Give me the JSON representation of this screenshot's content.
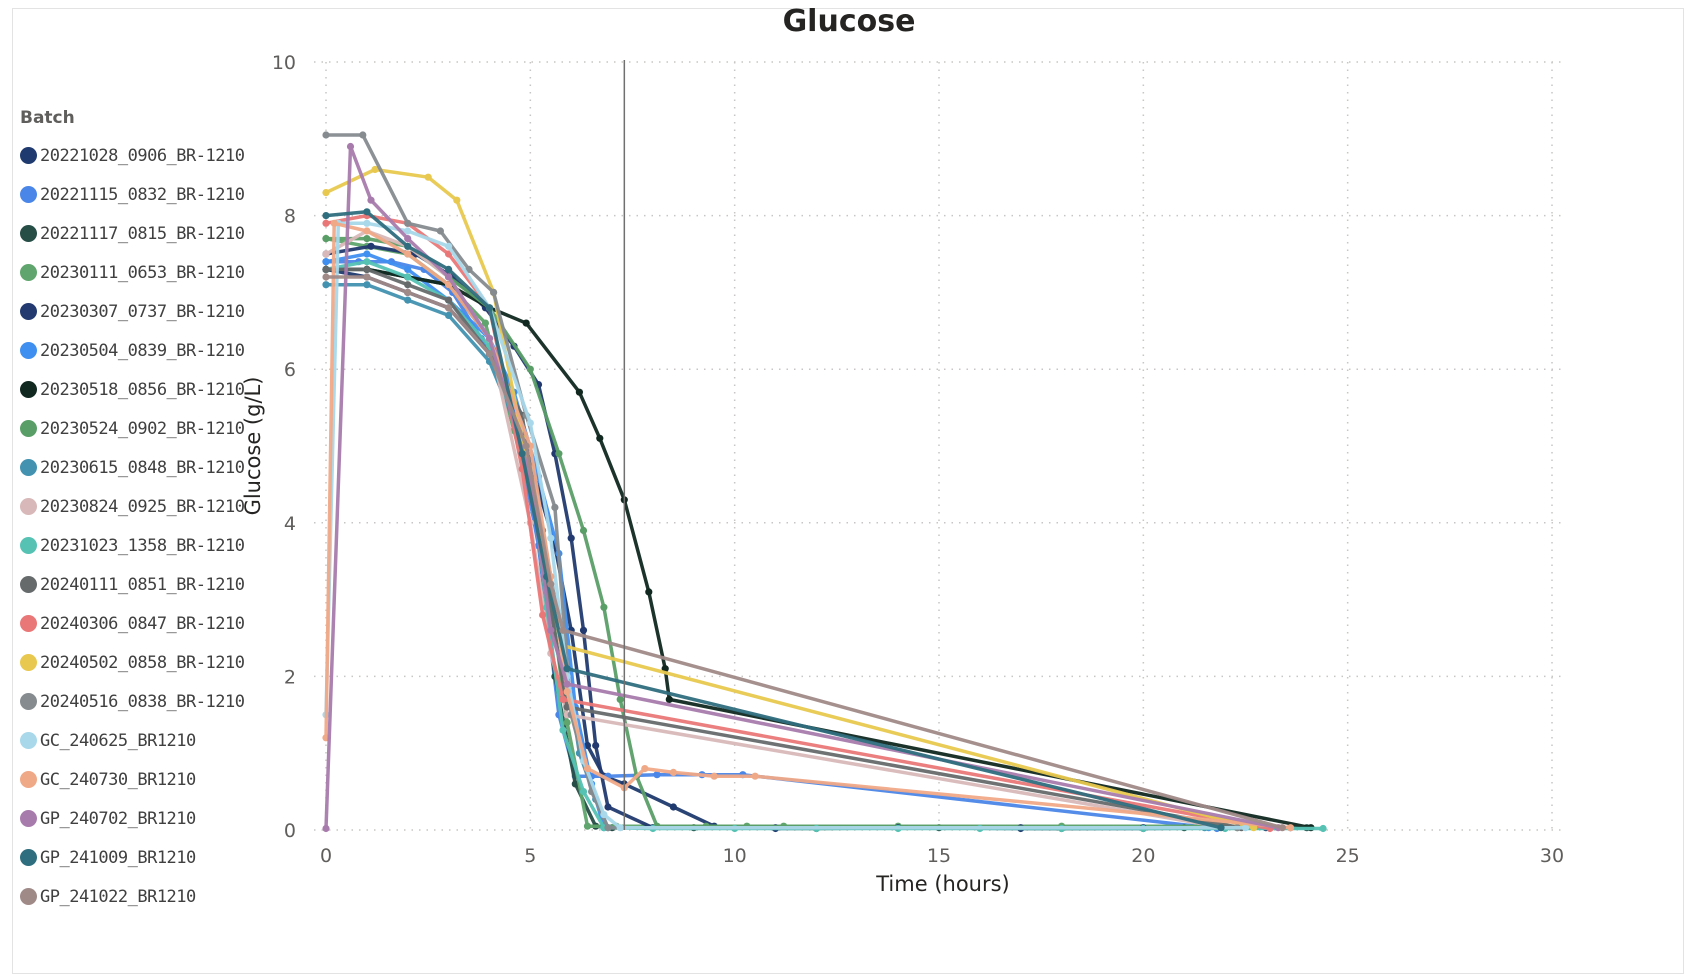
{
  "chart_data": {
    "type": "line",
    "title": "Glucose",
    "xlabel": "Time (hours)",
    "ylabel": "Glucose (g/L)",
    "xlim": [
      0,
      30
    ],
    "ylim": [
      0,
      10
    ],
    "x_ticks": [
      "0",
      "5",
      "10",
      "15",
      "20",
      "25",
      "30"
    ],
    "y_ticks": [
      "0",
      "2",
      "4",
      "6",
      "8",
      "10"
    ],
    "grid": "dotted",
    "reference_line_x": 7.3,
    "legend_title": "Batch",
    "legend_position": "left",
    "series": [
      {
        "name": "20221028_0906_BR-1210",
        "color": "#1f3a6e",
        "x": [
          0,
          1,
          2,
          3,
          4,
          5,
          5.6,
          6,
          6.4,
          6.8,
          7.3,
          8.5,
          9.5,
          11,
          14,
          17,
          20,
          23.6
        ],
        "y": [
          7.3,
          7.2,
          7.0,
          6.8,
          6.2,
          4.8,
          3.7,
          2.6,
          1.1,
          0.7,
          0.6,
          0.3,
          0.05,
          0.02,
          0.03,
          0.02,
          0.02,
          0.03
        ]
      },
      {
        "name": "20221115_0832_BR-1210",
        "color": "#4a86e8",
        "x": [
          0,
          0.8,
          1.6,
          2.4,
          3.1,
          3.8,
          4.5,
          5.2,
          5.7,
          6.1,
          6.5,
          6.9,
          8.1,
          9.2,
          10.2,
          21.8
        ],
        "y": [
          7.4,
          7.4,
          7.4,
          7.3,
          7.0,
          6.4,
          5.7,
          3.7,
          1.5,
          0.7,
          0.7,
          0.7,
          0.72,
          0.72,
          0.72,
          0.02
        ]
      },
      {
        "name": "20221117_0815_BR-1210",
        "color": "#264d46",
        "x": [
          0,
          1,
          2,
          3,
          4,
          5,
          5.6,
          6.1,
          6.6,
          7,
          9,
          12,
          15,
          18,
          21,
          24
        ],
        "y": [
          7.3,
          7.3,
          7.2,
          7.1,
          6.4,
          4.7,
          2.0,
          0.6,
          0.05,
          0.03,
          0.03,
          0.02,
          0.03,
          0.02,
          0.03,
          0.03
        ]
      },
      {
        "name": "20230111_0653_BR-1210",
        "color": "#5fa56d",
        "x": [
          0,
          1,
          2,
          3,
          3.9,
          4.6,
          5.3,
          5.9,
          6.4,
          6.8,
          7.1,
          7.8,
          9.3,
          10.3,
          11.2,
          14,
          18,
          22
        ],
        "y": [
          7.7,
          7.6,
          7.5,
          7.1,
          6.6,
          5.2,
          3.8,
          1.4,
          0.05,
          0.05,
          0.05,
          0.05,
          0.05,
          0.05,
          0.05,
          0.05,
          0.05,
          0.05
        ]
      },
      {
        "name": "20230307_0737_BR-1210",
        "color": "#223a70",
        "x": [
          0,
          1.1,
          2.2,
          3.1,
          3.9,
          4.6,
          5.2,
          5.6,
          6.0,
          6.3,
          6.6,
          6.9,
          8,
          11,
          14,
          17,
          20,
          23
        ],
        "y": [
          7.5,
          7.6,
          7.5,
          7.2,
          6.8,
          6.3,
          5.8,
          4.9,
          3.8,
          2.6,
          1.1,
          0.3,
          0.03,
          0.03,
          0.03,
          0.03,
          0.03,
          0.03
        ]
      },
      {
        "name": "20230504_0839_BR-1210",
        "color": "#3f8ff0",
        "x": [
          0,
          1,
          2,
          3,
          4,
          4.6,
          5.2,
          5.7,
          6.1,
          6.5,
          6.8,
          21.6
        ],
        "y": [
          7.4,
          7.5,
          7.3,
          6.9,
          6.4,
          5.7,
          4.6,
          3.6,
          1.6,
          0.6,
          0.03,
          0.03
        ]
      },
      {
        "name": "20230518_0856_BR-1210",
        "color": "#102820",
        "x": [
          0,
          1,
          2,
          3,
          4,
          4.9,
          6.2,
          6.7,
          7.3,
          7.9,
          8.3,
          8.4,
          24.1
        ],
        "y": [
          7.3,
          7.3,
          7.2,
          7.1,
          6.8,
          6.6,
          5.7,
          5.1,
          4.3,
          3.1,
          2.1,
          1.7,
          0.03
        ]
      },
      {
        "name": "20230524_0902_BR-1210",
        "color": "#5a9e67",
        "x": [
          0,
          1,
          2,
          3,
          4,
          5,
          5.7,
          6.3,
          6.8,
          7.2,
          7.6,
          8.1,
          22.3
        ],
        "y": [
          7.7,
          7.7,
          7.6,
          7.2,
          6.8,
          6.0,
          4.9,
          3.9,
          2.9,
          1.7,
          0.7,
          0.05,
          0.03
        ]
      },
      {
        "name": "20230615_0848_BR-1210",
        "color": "#4292b0",
        "x": [
          0,
          1,
          2,
          3,
          4,
          4.7,
          5.3,
          5.8,
          6.2,
          6.6,
          6.9,
          21.5
        ],
        "y": [
          7.1,
          7.1,
          6.9,
          6.7,
          6.1,
          5.2,
          3.9,
          2.4,
          1.0,
          0.4,
          0.03,
          0.03
        ]
      },
      {
        "name": "20230824_0925_BR-1210",
        "color": "#d8b8b8",
        "x": [
          0,
          1,
          2,
          3,
          4,
          5,
          5.5,
          5.9,
          22.0
        ],
        "y": [
          7.5,
          7.8,
          7.6,
          7.2,
          6.4,
          4.0,
          2.3,
          1.5,
          0.03
        ]
      },
      {
        "name": "20231023_1358_BR-1210",
        "color": "#55c2b4",
        "x": [
          0,
          1,
          2,
          3,
          4,
          5,
          5.4,
          5.8,
          6.3,
          6.8,
          8,
          10,
          12,
          14,
          16,
          18,
          20,
          22,
          24.4
        ],
        "y": [
          7.3,
          7.4,
          7.2,
          6.9,
          6.3,
          4.7,
          2.9,
          1.3,
          0.5,
          0.03,
          0.02,
          0.02,
          0.02,
          0.02,
          0.02,
          0.02,
          0.02,
          0.02,
          0.02
        ]
      },
      {
        "name": "20240111_0851_BR-1210",
        "color": "#666a6b",
        "x": [
          0,
          1,
          2,
          3,
          4,
          4.8,
          5.4,
          5.9,
          22.4
        ],
        "y": [
          7.3,
          7.3,
          7.1,
          6.9,
          6.2,
          5.4,
          3.2,
          1.6,
          0.03
        ]
      },
      {
        "name": "20240306_0847_BR-1210",
        "color": "#ea7777",
        "x": [
          0,
          1,
          2,
          3,
          4,
          4.8,
          5.3,
          5.8,
          23.1
        ],
        "y": [
          7.9,
          8.0,
          7.9,
          7.5,
          6.8,
          4.7,
          2.8,
          1.7,
          0.02
        ]
      },
      {
        "name": "20240502_0858_BR-1210",
        "color": "#e8c84e",
        "x": [
          0,
          1.2,
          2.5,
          3.2,
          4.1,
          4.8,
          5.4,
          5.8,
          22.7
        ],
        "y": [
          8.3,
          8.6,
          8.5,
          8.2,
          7.0,
          5.1,
          3.3,
          2.4,
          0.03
        ]
      },
      {
        "name": "20240516_0838_BR-1210",
        "color": "#858b8f",
        "x": [
          0,
          0.9,
          2,
          2.8,
          3.5,
          4.1,
          4.9,
          5.6,
          6.0,
          6.5,
          6.9,
          22.3
        ],
        "y": [
          9.05,
          9.05,
          7.9,
          7.8,
          7.3,
          7.0,
          5.4,
          4.2,
          1.5,
          0.5,
          0.03,
          0.03
        ]
      },
      {
        "name": "GC_240625_BR1210",
        "color": "#a8d8ea",
        "x": [
          0,
          0.3,
          1,
          2,
          3,
          4,
          5,
          5.5,
          5.9,
          6.3,
          6.8,
          7.2,
          22.5
        ],
        "y": [
          1.5,
          7.9,
          7.9,
          7.8,
          7.6,
          6.8,
          5.3,
          3.8,
          2.0,
          0.9,
          0.2,
          0.03,
          0.03
        ]
      },
      {
        "name": "GC_240730_BR1210",
        "color": "#f0a987",
        "x": [
          0,
          0.2,
          1,
          2,
          3,
          4,
          5,
          5.5,
          5.9,
          6.4,
          7.3,
          7.8,
          8.5,
          9.5,
          10.5,
          23.6
        ],
        "y": [
          1.2,
          7.9,
          7.8,
          7.5,
          7.1,
          6.4,
          5.0,
          3.3,
          1.8,
          0.8,
          0.55,
          0.8,
          0.75,
          0.7,
          0.7,
          0.03
        ]
      },
      {
        "name": "GP_240702_BR1210",
        "color": "#a87bad",
        "x": [
          0,
          0.6,
          1.1,
          2,
          3,
          4,
          5,
          5.5,
          5.9,
          23.3
        ],
        "y": [
          0.02,
          8.9,
          8.2,
          7.7,
          7.2,
          6.4,
          4.6,
          2.6,
          1.9,
          0.03
        ]
      },
      {
        "name": "GP_241009_BR1210",
        "color": "#2f6e7e",
        "x": [
          0,
          1,
          2,
          3,
          4,
          4.8,
          5.4,
          5.9,
          21.9
        ],
        "y": [
          8.0,
          8.05,
          7.6,
          7.3,
          6.8,
          4.9,
          3.3,
          2.1,
          0.03
        ]
      },
      {
        "name": "GP_241022_BR1210",
        "color": "#a08a88",
        "x": [
          0,
          1,
          2,
          3,
          4,
          4.9,
          5.5,
          5.8,
          23.4
        ],
        "y": [
          7.2,
          7.2,
          7.0,
          6.8,
          6.2,
          5.0,
          3.2,
          2.6,
          0.03
        ]
      }
    ]
  }
}
